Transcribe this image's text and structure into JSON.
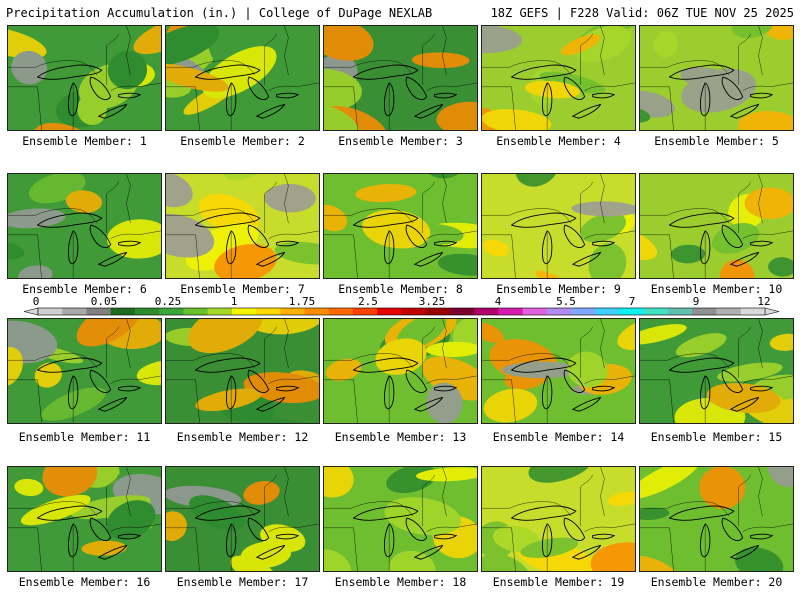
{
  "header": {
    "left_title": "Precipitation Accumulation (in.) | College of DuPage NEXLAB",
    "right_title": "18Z GEFS | F228 Valid: 06Z TUE NOV 25 2025"
  },
  "legend": {
    "tick_labels": [
      "0",
      "0.05",
      "0.25",
      "1",
      "1.75",
      "2.5",
      "3.25",
      "4",
      "5.5",
      "7",
      "9",
      "12"
    ],
    "colors": [
      "#cfcfcf",
      "#a9a9a9",
      "#808080",
      "#1f6b1f",
      "#2e8b2e",
      "#3aa53a",
      "#69c22c",
      "#a8d82a",
      "#f5f500",
      "#ffd800",
      "#ffb000",
      "#ff8c00",
      "#ff6a00",
      "#ff4000",
      "#e60000",
      "#c00000",
      "#990000",
      "#7a0030",
      "#b0006a",
      "#d81ab0",
      "#e060e0",
      "#b08cf0",
      "#80a8ff",
      "#40d0ff",
      "#10f0f0",
      "#40e0c0",
      "#60c0b0",
      "#909090",
      "#b0b0b0",
      "#d8d8d8"
    ]
  },
  "panels": [
    {
      "label": "Ensemble Member: 1",
      "base": "#3f9a37"
    },
    {
      "label": "Ensemble Member: 2",
      "base": "#3f9a37"
    },
    {
      "label": "Ensemble Member: 3",
      "base": "#3a8f35"
    },
    {
      "label": "Ensemble Member: 4",
      "base": "#9ccd2e"
    },
    {
      "label": "Ensemble Member: 5",
      "base": "#9ccd2e"
    },
    {
      "label": "Ensemble Member: 6",
      "base": "#3f9a37"
    },
    {
      "label": "Ensemble Member: 7",
      "base": "#c8dc2c"
    },
    {
      "label": "Ensemble Member: 8",
      "base": "#6fbe30"
    },
    {
      "label": "Ensemble Member: 9",
      "base": "#c8dc2c"
    },
    {
      "label": "Ensemble Member: 10",
      "base": "#9ccd2e"
    },
    {
      "label": "Ensemble Member: 11",
      "base": "#3f9a37"
    },
    {
      "label": "Ensemble Member: 12",
      "base": "#3a8f35"
    },
    {
      "label": "Ensemble Member: 13",
      "base": "#6fbe30"
    },
    {
      "label": "Ensemble Member: 14",
      "base": "#6fbe30"
    },
    {
      "label": "Ensemble Member: 15",
      "base": "#3f9a37"
    },
    {
      "label": "Ensemble Member: 16",
      "base": "#3f9a37"
    },
    {
      "label": "Ensemble Member: 17",
      "base": "#3a8f35"
    },
    {
      "label": "Ensemble Member: 18",
      "base": "#6fbe30"
    },
    {
      "label": "Ensemble Member: 19",
      "base": "#c8dc2c"
    },
    {
      "label": "Ensemble Member: 20",
      "base": "#6fbe30"
    }
  ]
}
